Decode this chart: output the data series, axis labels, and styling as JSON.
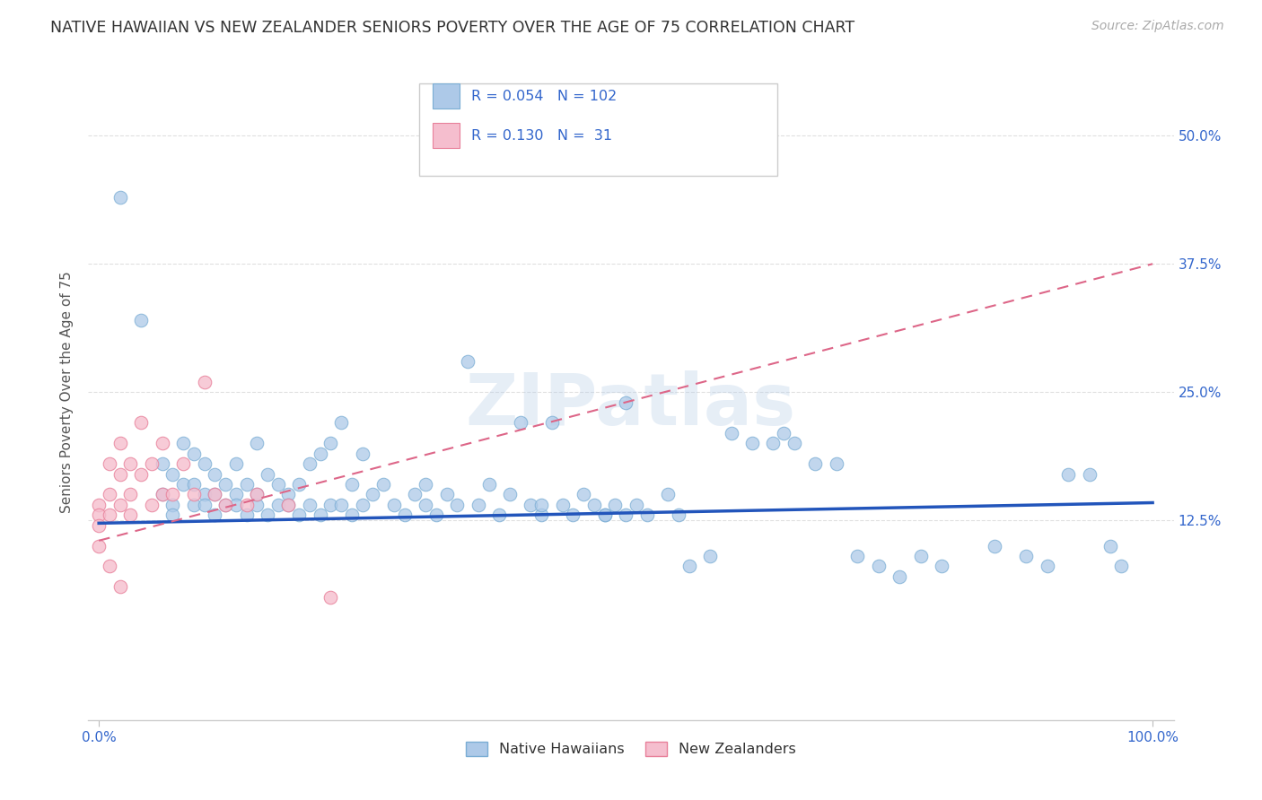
{
  "title": "NATIVE HAWAIIAN VS NEW ZEALANDER SENIORS POVERTY OVER THE AGE OF 75 CORRELATION CHART",
  "source": "Source: ZipAtlas.com",
  "ylabel": "Seniors Poverty Over the Age of 75",
  "xlim": [
    -0.01,
    1.02
  ],
  "ylim": [
    -0.07,
    0.57
  ],
  "native_hawaiian_color": "#adc9e8",
  "native_hawaiian_edge": "#7aadd4",
  "new_zealander_color": "#f5bece",
  "new_zealander_edge": "#e8809a",
  "trendline_hawaiian_color": "#2255bb",
  "trendline_zealander_color": "#dd6688",
  "nh_trend_x0": 0.0,
  "nh_trend_y0": 0.122,
  "nh_trend_x1": 1.0,
  "nh_trend_y1": 0.142,
  "nz_trend_x0": 0.0,
  "nz_trend_y0": 0.105,
  "nz_trend_x1": 1.0,
  "nz_trend_y1": 0.375,
  "R_hawaiian": 0.054,
  "N_hawaiian": 102,
  "R_zealander": 0.13,
  "N_zealander": 31,
  "legend_labels": [
    "Native Hawaiians",
    "New Zealanders"
  ],
  "watermark": "ZIPatlas",
  "background_color": "#ffffff",
  "grid_color": "#e0e0e0",
  "ytick_vals": [
    0.125,
    0.25,
    0.375,
    0.5
  ],
  "ytick_labels": [
    "12.5%",
    "25.0%",
    "37.5%",
    "50.0%"
  ],
  "xtick_vals": [
    0.0,
    1.0
  ],
  "xtick_labels": [
    "0.0%",
    "100.0%"
  ],
  "native_hawaiian_x": [
    0.02,
    0.04,
    0.06,
    0.06,
    0.07,
    0.07,
    0.07,
    0.08,
    0.08,
    0.09,
    0.09,
    0.09,
    0.1,
    0.1,
    0.1,
    0.11,
    0.11,
    0.11,
    0.12,
    0.12,
    0.13,
    0.13,
    0.13,
    0.14,
    0.14,
    0.15,
    0.15,
    0.15,
    0.16,
    0.16,
    0.17,
    0.17,
    0.18,
    0.18,
    0.19,
    0.19,
    0.2,
    0.2,
    0.21,
    0.21,
    0.22,
    0.22,
    0.23,
    0.23,
    0.24,
    0.24,
    0.25,
    0.25,
    0.26,
    0.27,
    0.28,
    0.29,
    0.3,
    0.31,
    0.31,
    0.32,
    0.33,
    0.34,
    0.35,
    0.36,
    0.37,
    0.38,
    0.39,
    0.4,
    0.41,
    0.42,
    0.43,
    0.44,
    0.45,
    0.46,
    0.47,
    0.48,
    0.49,
    0.5,
    0.5,
    0.51,
    0.52,
    0.54,
    0.56,
    0.58,
    0.6,
    0.62,
    0.64,
    0.66,
    0.68,
    0.7,
    0.72,
    0.74,
    0.76,
    0.78,
    0.8,
    0.85,
    0.88,
    0.9,
    0.92,
    0.94,
    0.96,
    0.97,
    0.65,
    0.55,
    0.48,
    0.42
  ],
  "native_hawaiian_y": [
    0.44,
    0.32,
    0.18,
    0.15,
    0.14,
    0.17,
    0.13,
    0.16,
    0.2,
    0.19,
    0.14,
    0.16,
    0.18,
    0.15,
    0.14,
    0.17,
    0.15,
    0.13,
    0.16,
    0.14,
    0.15,
    0.14,
    0.18,
    0.16,
    0.13,
    0.2,
    0.14,
    0.15,
    0.17,
    0.13,
    0.16,
    0.14,
    0.15,
    0.14,
    0.16,
    0.13,
    0.18,
    0.14,
    0.19,
    0.13,
    0.2,
    0.14,
    0.22,
    0.14,
    0.16,
    0.13,
    0.19,
    0.14,
    0.15,
    0.16,
    0.14,
    0.13,
    0.15,
    0.14,
    0.16,
    0.13,
    0.15,
    0.14,
    0.28,
    0.14,
    0.16,
    0.13,
    0.15,
    0.22,
    0.14,
    0.13,
    0.22,
    0.14,
    0.13,
    0.15,
    0.14,
    0.13,
    0.14,
    0.24,
    0.13,
    0.14,
    0.13,
    0.15,
    0.08,
    0.09,
    0.21,
    0.2,
    0.2,
    0.2,
    0.18,
    0.18,
    0.09,
    0.08,
    0.07,
    0.09,
    0.08,
    0.1,
    0.09,
    0.08,
    0.17,
    0.17,
    0.1,
    0.08,
    0.21,
    0.13,
    0.13,
    0.14
  ],
  "new_zealander_x": [
    0.0,
    0.0,
    0.0,
    0.0,
    0.01,
    0.01,
    0.01,
    0.01,
    0.02,
    0.02,
    0.02,
    0.02,
    0.03,
    0.03,
    0.03,
    0.04,
    0.04,
    0.05,
    0.05,
    0.06,
    0.06,
    0.07,
    0.08,
    0.09,
    0.1,
    0.11,
    0.12,
    0.14,
    0.15,
    0.18,
    0.22
  ],
  "new_zealander_y": [
    0.14,
    0.13,
    0.12,
    0.1,
    0.18,
    0.15,
    0.13,
    0.08,
    0.2,
    0.17,
    0.14,
    0.06,
    0.18,
    0.15,
    0.13,
    0.22,
    0.17,
    0.18,
    0.14,
    0.2,
    0.15,
    0.15,
    0.18,
    0.15,
    0.26,
    0.15,
    0.14,
    0.14,
    0.15,
    0.14,
    0.05
  ]
}
